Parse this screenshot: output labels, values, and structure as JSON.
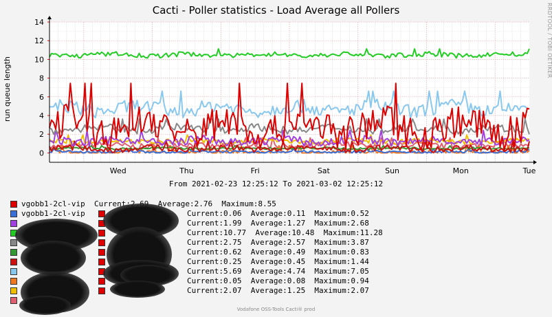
{
  "chart_data": {
    "type": "line",
    "title": "Cacti - Poller statistics - Load Average all Pollers",
    "ylabel": "run queue length",
    "ylim": [
      -1,
      14
    ],
    "yticks": [
      0,
      2,
      4,
      6,
      8,
      10,
      12,
      14
    ],
    "x_start": "2021-02-23 12:25:12",
    "x_end": "2021-03-02 12:25:12",
    "xticks": [
      "Wed",
      "Thu",
      "Fri",
      "Sat",
      "Sun",
      "Mon",
      "Tue"
    ],
    "grid": true,
    "range_text": "From 2021-02-23 12:25:12 To 2021-03-02 12:25:12",
    "side_label": "RRDTOOL / TOBI OETIKER",
    "footer": "Vodafone OSS-Tools Cacti® prod",
    "series": [
      {
        "name": "vgobb1-2cl-vip",
        "color": "#dd0000",
        "current": "2.69",
        "average": "2.76",
        "maximum": "8.55",
        "level": 2.76
      },
      {
        "name": "vgobb1-2cl-vip",
        "color": "#3a6fd8",
        "current": "0.06",
        "average": "0.11",
        "maximum": "0.52",
        "level": 0.11
      },
      {
        "color": "#a040e0",
        "current": "1.99",
        "average": "1.27",
        "maximum": "2.68",
        "level": 1.27
      },
      {
        "color": "#22cc22",
        "current": "10.77",
        "average": "10.48",
        "maximum": "11.28",
        "level": 10.48
      },
      {
        "color": "#888888",
        "current": "2.75",
        "average": "2.57",
        "maximum": "3.87",
        "level": 2.57
      },
      {
        "color": "#339933",
        "current": "0.62",
        "average": "0.49",
        "maximum": "0.83",
        "level": 0.49
      },
      {
        "color": "#cc1111",
        "current": "0.25",
        "average": "0.45",
        "maximum": "1.44",
        "level": 0.45
      },
      {
        "color": "#88c8ee",
        "current": "5.69",
        "average": "4.74",
        "maximum": "7.05",
        "level": 4.74
      },
      {
        "color": "#ee7722",
        "current": "0.05",
        "average": "0.08",
        "maximum": "0.94",
        "level": 0.08
      },
      {
        "color": "#f0c000",
        "current": "2.07",
        "average": "1.25",
        "maximum": "2.07",
        "level": 1.25
      },
      {
        "color": "#e06070"
      }
    ]
  }
}
